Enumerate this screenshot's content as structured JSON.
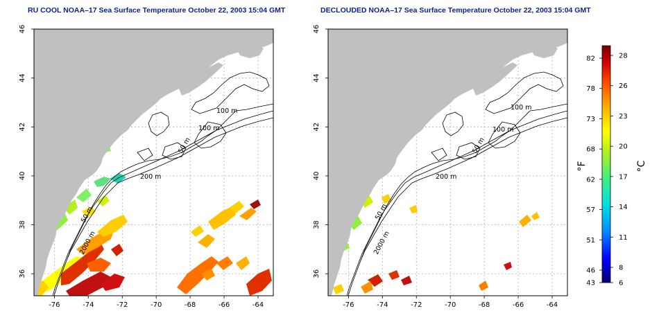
{
  "panels": [
    {
      "id": "left",
      "title": "RU COOL NOAA–17 Sea Surface Temperature October 22, 2003 15:04 GMT",
      "contour_labels": [
        "100 m",
        "100 m",
        "50 m",
        "200 m",
        "50 m",
        "2000 m"
      ]
    },
    {
      "id": "right",
      "title": "DECLOUDED NOAA–17 Sea Surface Temperature October 22, 2003 15:04 GMT",
      "contour_labels": [
        "100 m",
        "100 m",
        "50 m",
        "200 m",
        "50 m",
        "2000 m"
      ]
    }
  ],
  "axes": {
    "x_ticks": [
      "-76",
      "-74",
      "-72",
      "-70",
      "-68",
      "-66",
      "-64"
    ],
    "y_ticks": [
      "36",
      "38",
      "40",
      "42",
      "44",
      "46"
    ],
    "lon_range": [
      -77.2,
      -63.1
    ],
    "lat_range": [
      35.1,
      46.0
    ]
  },
  "colorbar": {
    "fahrenheit_labels": [
      "82",
      "78",
      "73",
      "68",
      "62",
      "57",
      "51",
      "46",
      "43"
    ],
    "celsius_labels": [
      "28",
      "26",
      "23",
      "20",
      "17",
      "14",
      "11",
      "8",
      "6"
    ],
    "unit_f": "°F",
    "unit_c": "°C",
    "colors": [
      "#08006e",
      "#0000ff",
      "#0090ff",
      "#00e0e0",
      "#40f080",
      "#b0f020",
      "#ffff00",
      "#ffb000",
      "#ff5000",
      "#d00000",
      "#7a0000"
    ]
  },
  "colors": {
    "land": "#c0c0c0",
    "ocean": "#ffffff",
    "grid": "#a0a0a0",
    "title": "#0b1f9a"
  }
}
